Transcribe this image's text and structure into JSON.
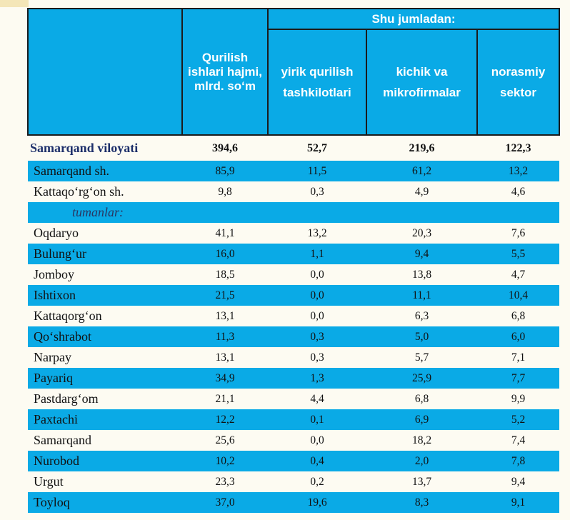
{
  "table": {
    "header": {
      "group_label": "Shu jumladan:",
      "col1": "Qurilish ishlari hajmi, mlrd. so‘m",
      "col2": "yirik qurilish tashkilotlari",
      "col3": "kichik va mikrofirmalar",
      "col4": "norasmiy sektor"
    },
    "rows": [
      {
        "name": "Samarqand viloyati",
        "v1": "394,6",
        "v2": "52,7",
        "v3": "219,6",
        "v4": "122,3"
      },
      {
        "name": "Samarqand sh.",
        "v1": "85,9",
        "v2": "11,5",
        "v3": "61,2",
        "v4": "13,2"
      },
      {
        "name": "Kattaqo‘rg‘on sh.",
        "v1": "9,8",
        "v2": "0,3",
        "v3": "4,9",
        "v4": "4,6"
      },
      {
        "name": "tumanlar:",
        "v1": "",
        "v2": "",
        "v3": "",
        "v4": ""
      },
      {
        "name": "Oqdaryo",
        "v1": "41,1",
        "v2": "13,2",
        "v3": "20,3",
        "v4": "7,6"
      },
      {
        "name": "Bulung‘ur",
        "v1": "16,0",
        "v2": "1,1",
        "v3": "9,4",
        "v4": "5,5"
      },
      {
        "name": "Jomboy",
        "v1": "18,5",
        "v2": "0,0",
        "v3": "13,8",
        "v4": "4,7"
      },
      {
        "name": "Ishtixon",
        "v1": "21,5",
        "v2": "0,0",
        "v3": "11,1",
        "v4": "10,4"
      },
      {
        "name": "Kattaqorg‘on",
        "v1": "13,1",
        "v2": "0,0",
        "v3": "6,3",
        "v4": "6,8"
      },
      {
        "name": "Qo‘shrabot",
        "v1": "11,3",
        "v2": "0,3",
        "v3": "5,0",
        "v4": "6,0"
      },
      {
        "name": "Narpay",
        "v1": "13,1",
        "v2": "0,3",
        "v3": "5,7",
        "v4": "7,1"
      },
      {
        "name": "Payariq",
        "v1": "34,9",
        "v2": "1,3",
        "v3": "25,9",
        "v4": "7,7"
      },
      {
        "name": "Pastdarg‘om",
        "v1": "21,1",
        "v2": "4,4",
        "v3": "6,8",
        "v4": "9,9"
      },
      {
        "name": "Paxtachi",
        "v1": "12,2",
        "v2": "0,1",
        "v3": "6,9",
        "v4": "5,2"
      },
      {
        "name": "Samarqand",
        "v1": "25,6",
        "v2": "0,0",
        "v3": "18,2",
        "v4": "7,4"
      },
      {
        "name": "Nurobod",
        "v1": "10,2",
        "v2": "0,4",
        "v3": "2,0",
        "v4": "7,8"
      },
      {
        "name": "Urgut",
        "v1": "23,3",
        "v2": "0,2",
        "v3": "13,7",
        "v4": "9,4"
      },
      {
        "name": "Toyloq",
        "v1": "37,0",
        "v2": "19,6",
        "v3": "8,3",
        "v4": "9,1"
      }
    ]
  },
  "colors": {
    "header_blue": "#0aaae6",
    "total_text": "#1d2f6a"
  }
}
